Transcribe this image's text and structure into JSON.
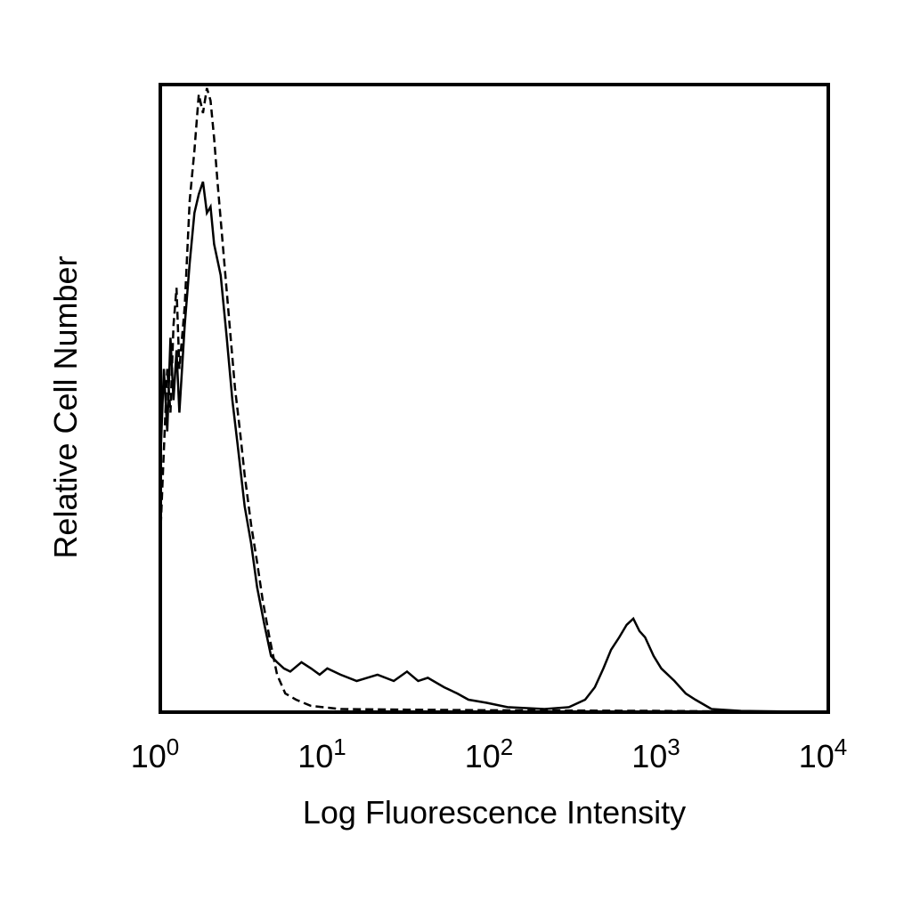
{
  "chart_data": {
    "type": "line",
    "title": "",
    "xlabel": "Log Fluorescence Intensity",
    "ylabel": "Relative Cell Number",
    "x_scale": "log",
    "xlim": [
      1,
      10000
    ],
    "ylim": [
      0,
      100
    ],
    "grid": false,
    "legend": "none",
    "x_ticks": [
      {
        "base": "10",
        "exp": "0"
      },
      {
        "base": "10",
        "exp": "1"
      },
      {
        "base": "10",
        "exp": "2"
      },
      {
        "base": "10",
        "exp": "3"
      },
      {
        "base": "10",
        "exp": "4"
      }
    ],
    "colors": {
      "axis": "#000000",
      "line": "#000000",
      "background": "#ffffff"
    },
    "series": [
      {
        "style": "dashed",
        "points": [
          [
            1.0,
            28
          ],
          [
            1.05,
            42
          ],
          [
            1.1,
            55
          ],
          [
            1.15,
            48
          ],
          [
            1.2,
            62
          ],
          [
            1.25,
            68
          ],
          [
            1.3,
            55
          ],
          [
            1.4,
            65
          ],
          [
            1.5,
            82
          ],
          [
            1.6,
            90
          ],
          [
            1.7,
            99
          ],
          [
            1.8,
            96
          ],
          [
            1.9,
            100
          ],
          [
            2.0,
            98
          ],
          [
            2.1,
            92
          ],
          [
            2.2,
            85
          ],
          [
            2.4,
            73
          ],
          [
            2.6,
            62
          ],
          [
            2.8,
            52
          ],
          [
            3.0,
            45
          ],
          [
            3.2,
            38
          ],
          [
            3.5,
            30
          ],
          [
            3.8,
            24
          ],
          [
            4.1,
            18
          ],
          [
            4.5,
            12
          ],
          [
            5.0,
            6
          ],
          [
            5.6,
            3
          ],
          [
            6.5,
            2
          ],
          [
            8.0,
            1
          ],
          [
            12,
            0.5
          ],
          [
            30,
            0.4
          ],
          [
            100,
            0.3
          ],
          [
            1000,
            0.2
          ],
          [
            10000,
            0
          ]
        ]
      },
      {
        "style": "solid",
        "points": [
          [
            1.0,
            40
          ],
          [
            1.05,
            55
          ],
          [
            1.1,
            45
          ],
          [
            1.15,
            60
          ],
          [
            1.2,
            50
          ],
          [
            1.25,
            58
          ],
          [
            1.3,
            48
          ],
          [
            1.4,
            62
          ],
          [
            1.5,
            72
          ],
          [
            1.6,
            80
          ],
          [
            1.7,
            83
          ],
          [
            1.8,
            85
          ],
          [
            1.9,
            80
          ],
          [
            2.0,
            81
          ],
          [
            2.1,
            75
          ],
          [
            2.3,
            70
          ],
          [
            2.5,
            60
          ],
          [
            2.7,
            50
          ],
          [
            2.9,
            43
          ],
          [
            3.2,
            33
          ],
          [
            3.5,
            27
          ],
          [
            3.8,
            20
          ],
          [
            4.2,
            14
          ],
          [
            4.6,
            9
          ],
          [
            5.0,
            8
          ],
          [
            5.5,
            7
          ],
          [
            6,
            6.5
          ],
          [
            7,
            8
          ],
          [
            8,
            7
          ],
          [
            9,
            6
          ],
          [
            10,
            7
          ],
          [
            12,
            6
          ],
          [
            15,
            5
          ],
          [
            20,
            6
          ],
          [
            25,
            5
          ],
          [
            30,
            6.5
          ],
          [
            35,
            5
          ],
          [
            40,
            5.5
          ],
          [
            50,
            4
          ],
          [
            60,
            3
          ],
          [
            70,
            2
          ],
          [
            90,
            1.5
          ],
          [
            120,
            0.8
          ],
          [
            200,
            0.5
          ],
          [
            280,
            0.8
          ],
          [
            350,
            2
          ],
          [
            400,
            4
          ],
          [
            450,
            7
          ],
          [
            500,
            10
          ],
          [
            560,
            12
          ],
          [
            620,
            14
          ],
          [
            680,
            15
          ],
          [
            740,
            13
          ],
          [
            800,
            12
          ],
          [
            900,
            9
          ],
          [
            1000,
            7
          ],
          [
            1200,
            5
          ],
          [
            1400,
            3
          ],
          [
            1600,
            2
          ],
          [
            2000,
            0.5
          ],
          [
            3000,
            0.2
          ],
          [
            10000,
            0
          ]
        ]
      }
    ]
  }
}
